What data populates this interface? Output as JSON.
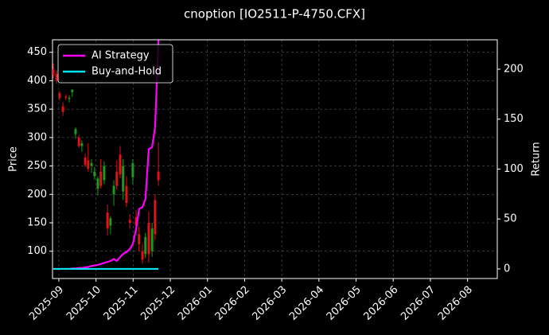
{
  "chart_data": {
    "type": "candlestick",
    "title": "cnoption [IO2511-P-4750.CFX]",
    "y_label": "Price",
    "y2_label": "Return",
    "x": [
      -0.15,
      -0.06,
      0.02,
      0.11,
      0.19,
      0.28,
      0.36,
      0.45,
      0.54,
      0.62,
      0.71,
      0.79,
      0.88,
      0.96,
      1.05,
      1.13,
      1.22,
      1.31,
      1.39,
      1.48,
      1.56,
      1.65,
      1.73,
      1.82,
      1.91,
      1.99,
      2.08,
      2.16,
      2.25,
      2.33,
      2.42,
      2.51,
      2.59,
      2.68
    ],
    "open": [
      420,
      412,
      378,
      355,
      372,
      368,
      380,
      306,
      300,
      285,
      265,
      260,
      250,
      232,
      210,
      240,
      225,
      168,
      145,
      200,
      240,
      270,
      205,
      215,
      155,
      230,
      160,
      130,
      100,
      95,
      150,
      100,
      190,
      240
    ],
    "high": [
      430,
      418,
      382,
      362,
      376,
      374,
      385,
      318,
      305,
      295,
      272,
      290,
      262,
      248,
      232,
      262,
      258,
      182,
      162,
      225,
      260,
      285,
      262,
      232,
      165,
      262,
      172,
      142,
      112,
      132,
      170,
      150,
      200,
      292
    ],
    "low": [
      405,
      395,
      365,
      338,
      366,
      362,
      372,
      298,
      282,
      275,
      248,
      240,
      238,
      226,
      198,
      210,
      218,
      128,
      130,
      180,
      208,
      228,
      190,
      178,
      140,
      218,
      138,
      100,
      78,
      88,
      80,
      90,
      120,
      215
    ],
    "close": [
      410,
      400,
      370,
      345,
      370,
      370,
      384,
      315,
      285,
      290,
      252,
      245,
      255,
      240,
      228,
      215,
      250,
      140,
      158,
      215,
      215,
      235,
      250,
      185,
      150,
      255,
      145,
      112,
      85,
      125,
      95,
      140,
      130,
      225
    ],
    "up_color": "#1e9a1e",
    "down_color": "#e01414",
    "series": [
      {
        "name": "AI Strategy",
        "color": "#ff00ff",
        "axis": "y2",
        "values": [
          0,
          0,
          0,
          0,
          0,
          0,
          0.5,
          0.5,
          1,
          1,
          1.5,
          2,
          3,
          3.5,
          4,
          5,
          6,
          7,
          8,
          10,
          8,
          12,
          15,
          17,
          20,
          25,
          40,
          60,
          62,
          70,
          120,
          122,
          142,
          229
        ]
      },
      {
        "name": "Buy-and-Hold",
        "color": "#00e5ee",
        "axis": "y2",
        "values": [
          0,
          0,
          0,
          0,
          0,
          0,
          0,
          0,
          0,
          0,
          0,
          0,
          0,
          0,
          0,
          0,
          0,
          0,
          0,
          0,
          0,
          0,
          0,
          0,
          0,
          0,
          0,
          0,
          0,
          0,
          0,
          0,
          0,
          0
        ]
      }
    ],
    "xlim": [
      -0.17,
      11.8
    ],
    "xticks": [
      {
        "value": 0,
        "label": "2025-09"
      },
      {
        "value": 1,
        "label": "2025-10"
      },
      {
        "value": 2,
        "label": "2025-11"
      },
      {
        "value": 3,
        "label": "2025-12"
      },
      {
        "value": 4,
        "label": "2026-01"
      },
      {
        "value": 5,
        "label": "2026-02"
      },
      {
        "value": 6,
        "label": "2026-03"
      },
      {
        "value": 7,
        "label": "2026-04"
      },
      {
        "value": 8,
        "label": "2026-05"
      },
      {
        "value": 9,
        "label": "2026-06"
      },
      {
        "value": 10,
        "label": "2026-07"
      },
      {
        "value": 11,
        "label": "2026-08"
      }
    ],
    "ylim": [
      52,
      472
    ],
    "yticks": [
      100,
      150,
      200,
      250,
      300,
      350,
      400,
      450
    ],
    "y2lim": [
      -9.6,
      229.5
    ],
    "y2ticks": [
      0,
      50,
      100,
      150,
      200
    ],
    "grid": true,
    "legend": "upper left"
  }
}
